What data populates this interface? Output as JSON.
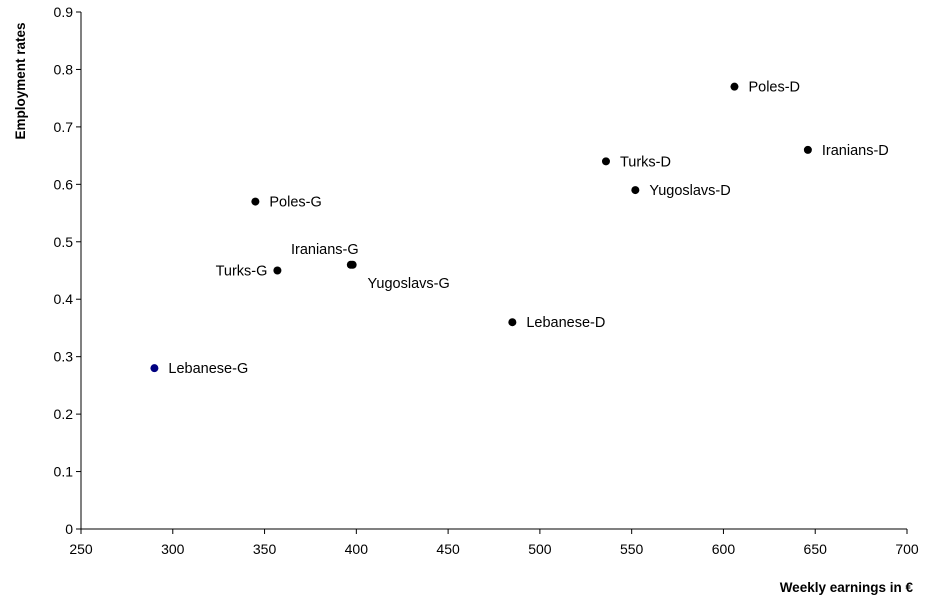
{
  "chart_data": {
    "type": "scatter",
    "title": "",
    "xlabel": "Weekly earnings in €",
    "ylabel": "Employment rates",
    "xlim": [
      250,
      700
    ],
    "ylim": [
      0,
      0.9
    ],
    "x_ticks": [
      "250",
      "300",
      "350",
      "400",
      "450",
      "500",
      "550",
      "600",
      "650",
      "700"
    ],
    "y_ticks": [
      "0",
      "0.1",
      "0.2",
      "0.3",
      "0.4",
      "0.5",
      "0.6",
      "0.7",
      "0.8",
      "0.9"
    ],
    "grid": false,
    "legend": "none",
    "points": [
      {
        "label": "Lebanese-G",
        "x": 290,
        "y": 0.28,
        "color": "#000080"
      },
      {
        "label": "Poles-G",
        "x": 345,
        "y": 0.57,
        "color": "#000000"
      },
      {
        "label": "Turks-G",
        "x": 357,
        "y": 0.45,
        "color": "#000000"
      },
      {
        "label": "Iranians-G",
        "x": 397,
        "y": 0.46,
        "color": "#000000"
      },
      {
        "label": "Yugoslavs-G",
        "x": 398,
        "y": 0.46,
        "color": "#000000"
      },
      {
        "label": "Lebanese-D",
        "x": 485,
        "y": 0.36,
        "color": "#000000"
      },
      {
        "label": "Turks-D",
        "x": 536,
        "y": 0.64,
        "color": "#000000"
      },
      {
        "label": "Yugoslavs-D",
        "x": 552,
        "y": 0.59,
        "color": "#000000"
      },
      {
        "label": "Poles-D",
        "x": 606,
        "y": 0.77,
        "color": "#000000"
      },
      {
        "label": "Iranians-D",
        "x": 646,
        "y": 0.66,
        "color": "#000000"
      }
    ]
  }
}
